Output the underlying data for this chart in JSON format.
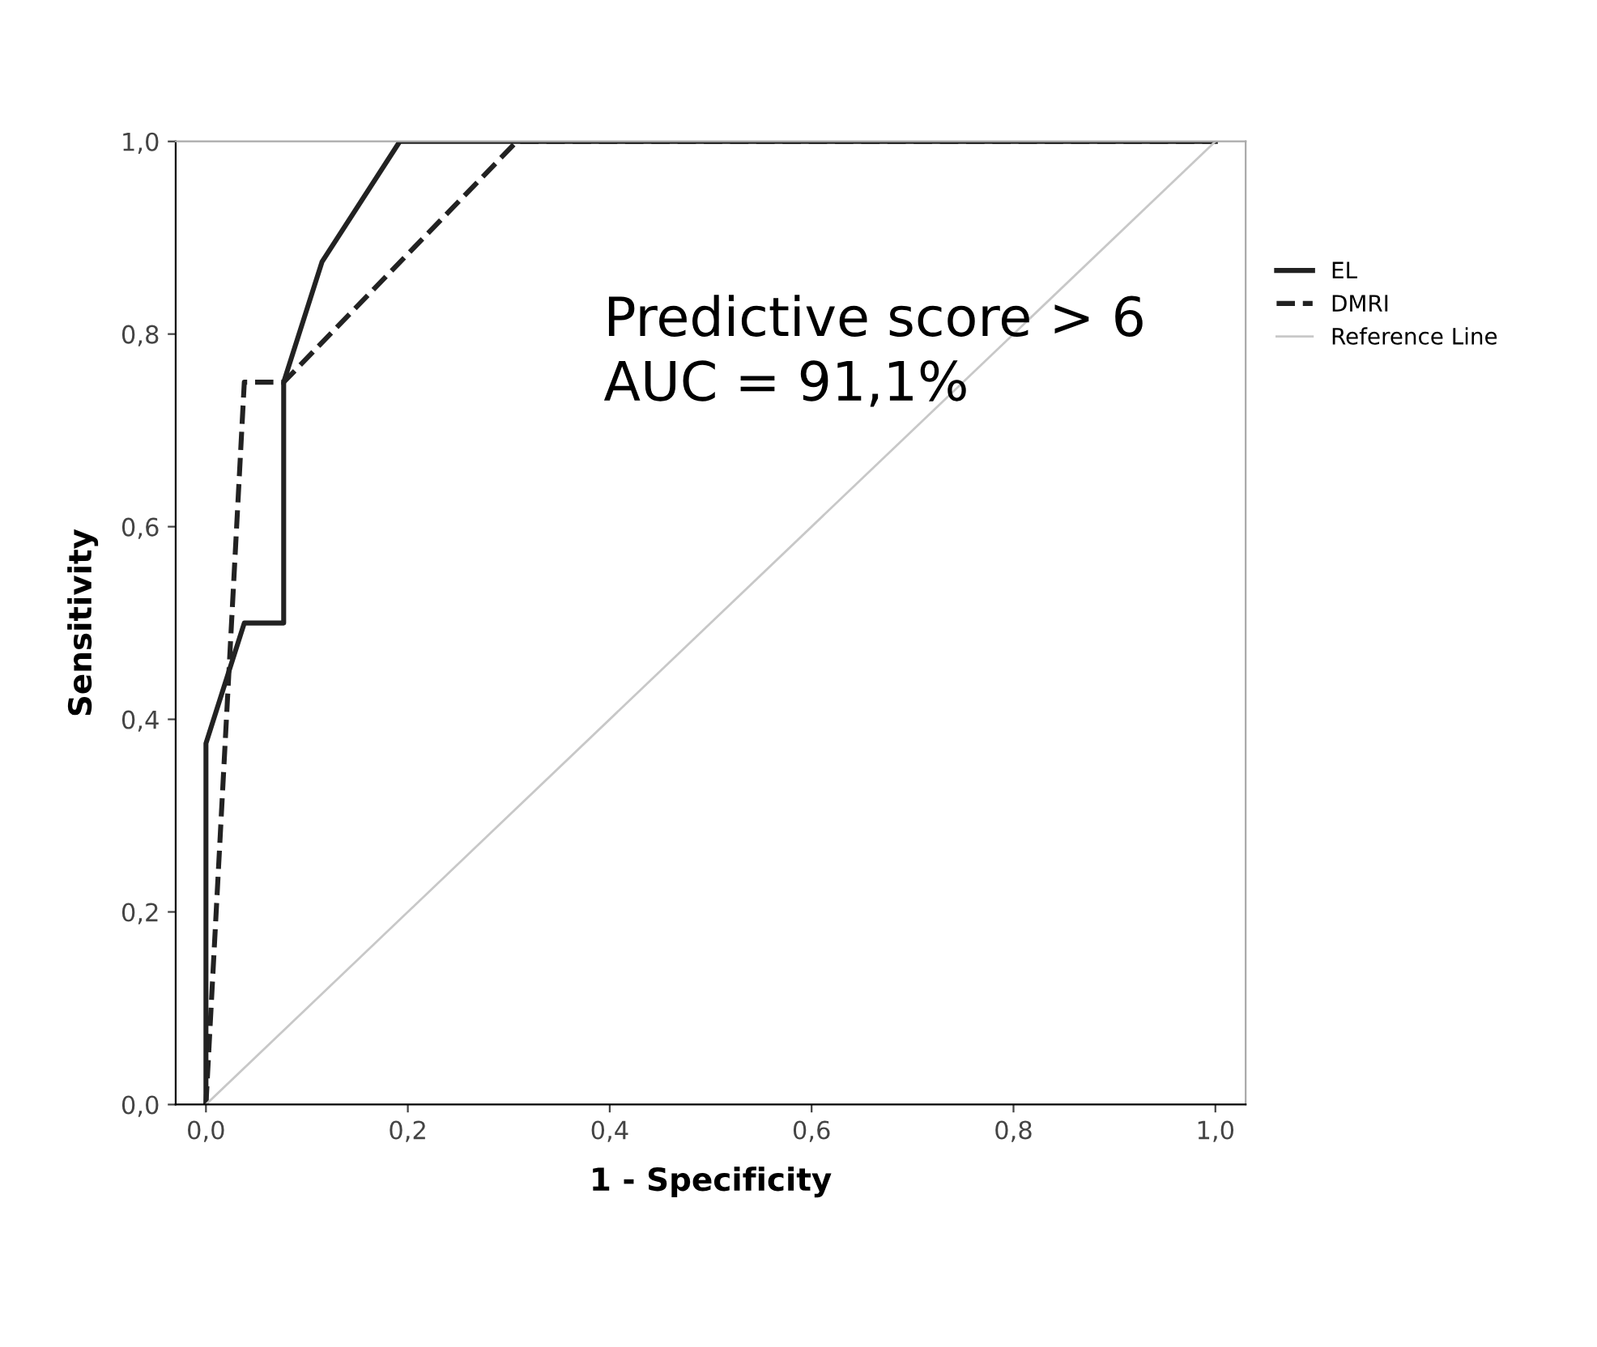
{
  "chart_data": {
    "type": "line",
    "xlabel": "1 - Specificity",
    "ylabel": "Sensitivity",
    "xlim": [
      -0.03,
      1.03
    ],
    "ylim": [
      0,
      1
    ],
    "xticks": [
      {
        "value": 0,
        "label": "0,0"
      },
      {
        "value": 0.2,
        "label": "0,2"
      },
      {
        "value": 0.4,
        "label": "0,4"
      },
      {
        "value": 0.6,
        "label": "0,6"
      },
      {
        "value": 0.8,
        "label": "0,8"
      },
      {
        "value": 1,
        "label": "1,0"
      }
    ],
    "yticks": [
      {
        "value": 0,
        "label": "0,0"
      },
      {
        "value": 0.2,
        "label": "0,2"
      },
      {
        "value": 0.4,
        "label": "0,4"
      },
      {
        "value": 0.6,
        "label": "0,6"
      },
      {
        "value": 0.8,
        "label": "0,8"
      },
      {
        "value": 1,
        "label": "1,0"
      }
    ],
    "series": [
      {
        "name": "EL",
        "color": "#222222",
        "line_style": "solid",
        "x": [
          0,
          0,
          0.038,
          0.077,
          0.077,
          0.115,
          0.192,
          1
        ],
        "values": [
          0,
          0.375,
          0.5,
          0.5,
          0.75,
          0.875,
          1,
          1
        ]
      },
      {
        "name": "DMRI",
        "color": "#222222",
        "line_style": "dashed",
        "x": [
          0,
          0.038,
          0.077,
          0.308,
          1
        ],
        "values": [
          0,
          0.75,
          0.75,
          1,
          1
        ]
      },
      {
        "name": "Reference Line",
        "color": "#c8c8c8",
        "line_style": "solid",
        "x": [
          0,
          1
        ],
        "values": [
          0,
          1
        ]
      }
    ],
    "annotations": [
      "Predictive score > 6\nAUC = 91,1%"
    ],
    "grid": false,
    "legend": "right"
  }
}
